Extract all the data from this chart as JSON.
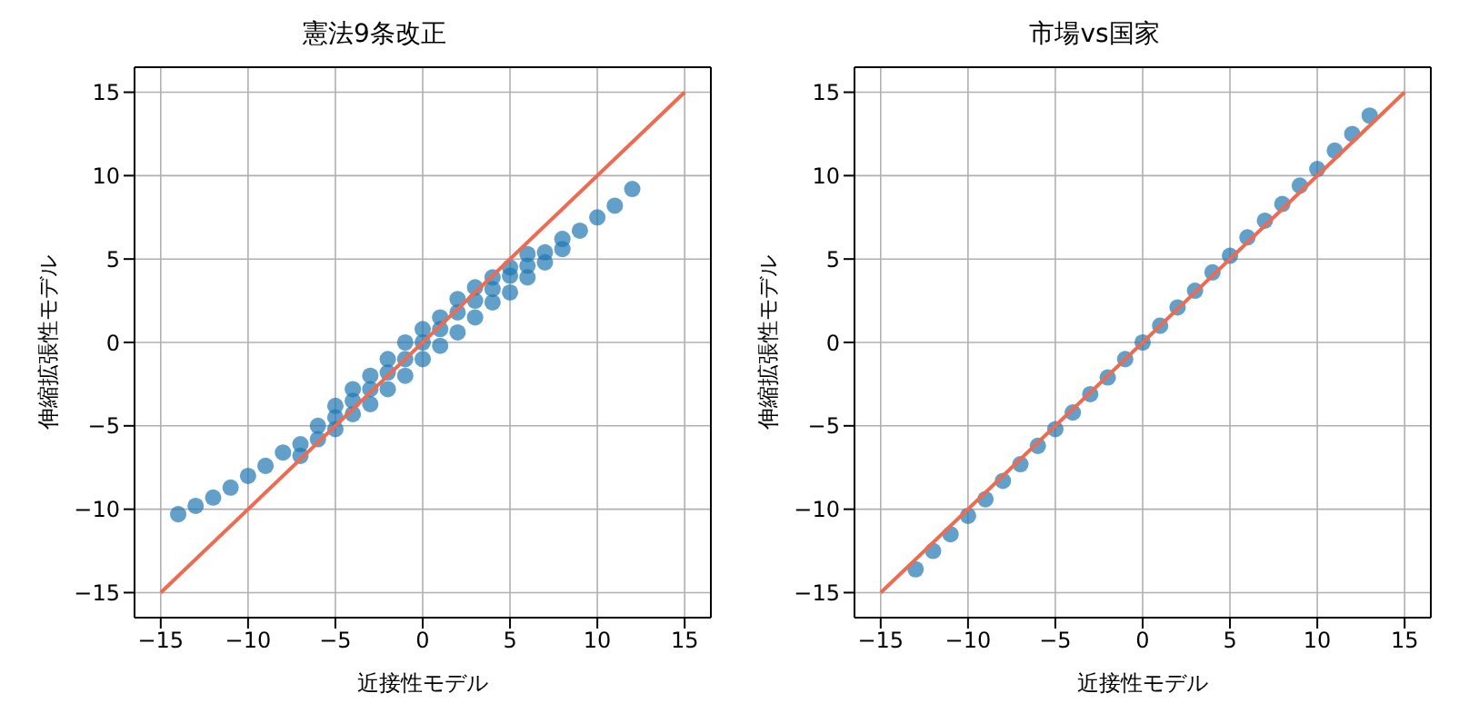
{
  "chart_data": [
    {
      "type": "scatter",
      "title": "憲法9条改正",
      "xlabel": "近接性モデル",
      "ylabel": "伸縮拡張性モデル",
      "xlim": [
        -16.5,
        16.5
      ],
      "ylim": [
        -16.5,
        16.5
      ],
      "xticks": [
        -15,
        -10,
        -5,
        0,
        5,
        10,
        15
      ],
      "yticks": [
        -15,
        -10,
        -5,
        0,
        5,
        10,
        15
      ],
      "grid": true,
      "marker": "circle",
      "series": [
        {
          "color": "#1f77b4",
          "x": [
            -14,
            -13,
            -12,
            -11,
            -10,
            -9,
            -8,
            -7,
            -6,
            -5,
            -4,
            -3,
            -2,
            -1,
            0,
            1,
            2,
            3,
            4,
            5,
            6,
            7,
            8,
            9,
            10,
            11,
            12,
            -7,
            -6,
            -5,
            -5,
            -4,
            -4,
            -3,
            -3,
            -2,
            -2,
            -1,
            -1,
            0,
            0,
            1,
            1,
            2,
            2,
            3,
            3,
            4,
            4,
            5,
            5,
            6,
            6,
            7,
            8
          ],
          "values": [
            -10.3,
            -9.8,
            -9.3,
            -8.7,
            -8.0,
            -7.4,
            -6.6,
            -6.1,
            -5.0,
            -4.5,
            -3.5,
            -2.8,
            -1.8,
            -1.0,
            0.0,
            0.8,
            1.8,
            2.5,
            3.2,
            4.0,
            4.6,
            5.4,
            6.2,
            6.7,
            7.5,
            8.2,
            9.2,
            -6.8,
            -5.8,
            -5.2,
            -3.8,
            -4.3,
            -2.8,
            -3.7,
            -2.0,
            -2.8,
            -1.0,
            -2.0,
            0.0,
            -1.0,
            0.8,
            -0.2,
            1.5,
            0.6,
            2.6,
            1.5,
            3.3,
            2.4,
            3.9,
            3.0,
            4.5,
            3.9,
            5.3,
            4.8,
            5.6
          ]
        },
        {
          "type": "line",
          "marker": "none",
          "color": "#ee6a50",
          "x": [
            -15,
            15
          ],
          "values": [
            -15,
            15
          ]
        }
      ]
    },
    {
      "type": "scatter",
      "title": "市場vs国家",
      "xlabel": "近接性モデル",
      "ylabel": "伸縮拡張性モデル",
      "xlim": [
        -16.5,
        16.5
      ],
      "ylim": [
        -16.5,
        16.5
      ],
      "xticks": [
        -15,
        -10,
        -5,
        0,
        5,
        10,
        15
      ],
      "yticks": [
        -15,
        -10,
        -5,
        0,
        5,
        10,
        15
      ],
      "grid": true,
      "marker": "circle",
      "series": [
        {
          "color": "#1f77b4",
          "x": [
            -13,
            -12,
            -11,
            -10,
            -9,
            -8,
            -7,
            -6,
            -5,
            -4,
            -3,
            -2,
            -1,
            0,
            1,
            2,
            3,
            4,
            5,
            6,
            7,
            8,
            9,
            10,
            11,
            12,
            13
          ],
          "values": [
            -13.6,
            -12.5,
            -11.5,
            -10.4,
            -9.4,
            -8.3,
            -7.3,
            -6.2,
            -5.2,
            -4.2,
            -3.1,
            -2.1,
            -1.0,
            0.0,
            1.0,
            2.1,
            3.1,
            4.2,
            5.2,
            6.3,
            7.3,
            8.3,
            9.4,
            10.4,
            11.5,
            12.5,
            13.6
          ]
        },
        {
          "type": "line",
          "marker": "none",
          "color": "#ee6a50",
          "x": [
            -15,
            15
          ],
          "values": [
            -15,
            15
          ]
        }
      ]
    }
  ]
}
